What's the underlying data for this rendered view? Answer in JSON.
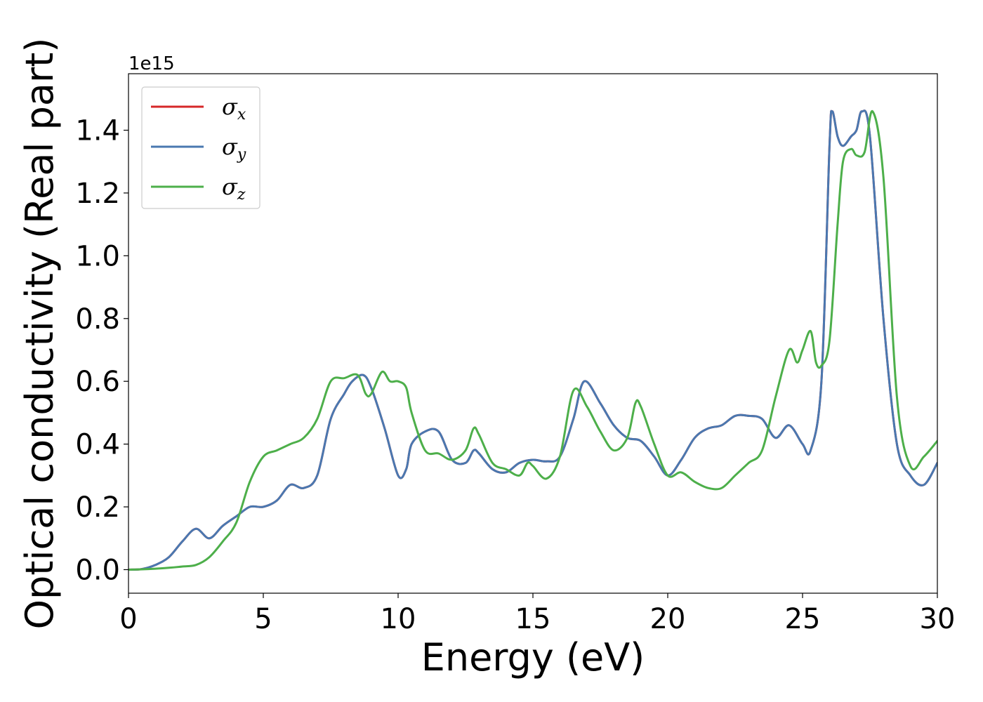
{
  "chart_data": {
    "type": "line",
    "xlabel": "Energy (eV)",
    "ylabel": "Optical conductivity (Real part)",
    "y_offset_text": "1e15",
    "xlim": [
      0,
      30
    ],
    "ylim": [
      -0.075,
      1.58
    ],
    "x_ticks": [
      0,
      5,
      10,
      15,
      20,
      25,
      30
    ],
    "x_tick_labels": [
      "0",
      "5",
      "10",
      "15",
      "20",
      "25",
      "30"
    ],
    "y_ticks": [
      0.0,
      0.2,
      0.4,
      0.6,
      0.8,
      1.0,
      1.2,
      1.4
    ],
    "y_tick_labels": [
      "0.0",
      "0.2",
      "0.4",
      "0.6",
      "0.8",
      "1.0",
      "1.2",
      "1.4"
    ],
    "grid": false,
    "legend_position": "top-left",
    "series": [
      {
        "name": "σx",
        "symbol": "σ",
        "subscript": "x",
        "color": "#d62728",
        "x": [
          0,
          0.5,
          1.0,
          1.5,
          2.0,
          2.5,
          3.0,
          3.5,
          4.0,
          4.5,
          5.0,
          5.5,
          6.0,
          6.5,
          7.0,
          7.5,
          8.0,
          8.3,
          8.7,
          9.0,
          9.5,
          10.0,
          10.3,
          10.5,
          11.0,
          11.5,
          12.0,
          12.5,
          12.8,
          13.0,
          13.5,
          14.0,
          14.5,
          15.0,
          15.5,
          16.0,
          16.5,
          16.9,
          17.5,
          18.0,
          18.5,
          19.0,
          19.5,
          20.0,
          20.5,
          21.0,
          21.5,
          22.0,
          22.5,
          23.0,
          23.5,
          24.0,
          24.5,
          25.0,
          25.3,
          25.7,
          26.0,
          26.1,
          26.3,
          26.5,
          26.8,
          27.0,
          27.2,
          27.5,
          28.0,
          28.5,
          29.0,
          29.5,
          30.0
        ],
        "y": [
          0.0,
          0.002,
          0.015,
          0.04,
          0.09,
          0.13,
          0.1,
          0.14,
          0.17,
          0.2,
          0.2,
          0.22,
          0.27,
          0.26,
          0.3,
          0.48,
          0.56,
          0.6,
          0.62,
          0.58,
          0.45,
          0.3,
          0.32,
          0.4,
          0.44,
          0.44,
          0.35,
          0.34,
          0.38,
          0.37,
          0.32,
          0.31,
          0.34,
          0.35,
          0.345,
          0.36,
          0.48,
          0.6,
          0.53,
          0.46,
          0.42,
          0.41,
          0.36,
          0.3,
          0.35,
          0.42,
          0.45,
          0.46,
          0.49,
          0.49,
          0.48,
          0.42,
          0.46,
          0.4,
          0.38,
          0.6,
          1.35,
          1.46,
          1.38,
          1.35,
          1.38,
          1.4,
          1.46,
          1.38,
          0.8,
          0.4,
          0.3,
          0.27,
          0.34
        ]
      },
      {
        "name": "σy",
        "symbol": "σ",
        "subscript": "y",
        "color": "#4a78b0",
        "x": [
          0,
          0.5,
          1.0,
          1.5,
          2.0,
          2.5,
          3.0,
          3.5,
          4.0,
          4.5,
          5.0,
          5.5,
          6.0,
          6.5,
          7.0,
          7.5,
          8.0,
          8.3,
          8.7,
          9.0,
          9.5,
          10.0,
          10.3,
          10.5,
          11.0,
          11.5,
          12.0,
          12.5,
          12.8,
          13.0,
          13.5,
          14.0,
          14.5,
          15.0,
          15.5,
          16.0,
          16.5,
          16.9,
          17.5,
          18.0,
          18.5,
          19.0,
          19.5,
          20.0,
          20.5,
          21.0,
          21.5,
          22.0,
          22.5,
          23.0,
          23.5,
          24.0,
          24.5,
          25.0,
          25.3,
          25.7,
          26.0,
          26.1,
          26.3,
          26.5,
          26.8,
          27.0,
          27.2,
          27.5,
          28.0,
          28.5,
          29.0,
          29.5,
          30.0
        ],
        "y": [
          0.0,
          0.002,
          0.015,
          0.04,
          0.09,
          0.13,
          0.1,
          0.14,
          0.17,
          0.2,
          0.2,
          0.22,
          0.27,
          0.26,
          0.3,
          0.48,
          0.56,
          0.6,
          0.62,
          0.58,
          0.45,
          0.3,
          0.32,
          0.4,
          0.44,
          0.44,
          0.35,
          0.34,
          0.38,
          0.37,
          0.32,
          0.31,
          0.34,
          0.35,
          0.345,
          0.36,
          0.48,
          0.6,
          0.53,
          0.46,
          0.42,
          0.41,
          0.36,
          0.3,
          0.35,
          0.42,
          0.45,
          0.46,
          0.49,
          0.49,
          0.48,
          0.42,
          0.46,
          0.4,
          0.38,
          0.6,
          1.35,
          1.46,
          1.38,
          1.35,
          1.38,
          1.4,
          1.46,
          1.38,
          0.8,
          0.4,
          0.3,
          0.27,
          0.34
        ]
      },
      {
        "name": "σz",
        "symbol": "σ",
        "subscript": "z",
        "color": "#4daf4a",
        "x": [
          0,
          0.5,
          1.0,
          1.5,
          2.0,
          2.5,
          3.0,
          3.5,
          4.0,
          4.5,
          5.0,
          5.5,
          6.0,
          6.5,
          7.0,
          7.5,
          8.0,
          8.5,
          8.8,
          9.0,
          9.4,
          9.7,
          10.0,
          10.3,
          10.5,
          11.0,
          11.5,
          12.0,
          12.5,
          12.8,
          13.0,
          13.5,
          14.0,
          14.5,
          14.8,
          15.0,
          15.5,
          16.0,
          16.5,
          17.0,
          17.5,
          18.0,
          18.5,
          18.8,
          19.0,
          19.5,
          20.0,
          20.5,
          21.0,
          21.5,
          22.0,
          22.5,
          23.0,
          23.5,
          24.0,
          24.5,
          24.8,
          25.0,
          25.3,
          25.5,
          25.7,
          26.0,
          26.3,
          26.5,
          26.8,
          27.0,
          27.3,
          27.6,
          28.0,
          28.5,
          29.0,
          29.5,
          30.0
        ],
        "y": [
          0.0,
          0.001,
          0.003,
          0.006,
          0.01,
          0.015,
          0.04,
          0.09,
          0.15,
          0.28,
          0.36,
          0.38,
          0.4,
          0.42,
          0.48,
          0.6,
          0.61,
          0.62,
          0.56,
          0.56,
          0.63,
          0.6,
          0.6,
          0.58,
          0.5,
          0.38,
          0.37,
          0.35,
          0.38,
          0.45,
          0.43,
          0.34,
          0.32,
          0.3,
          0.34,
          0.33,
          0.29,
          0.36,
          0.57,
          0.52,
          0.44,
          0.38,
          0.42,
          0.53,
          0.52,
          0.4,
          0.3,
          0.31,
          0.28,
          0.26,
          0.26,
          0.3,
          0.34,
          0.38,
          0.55,
          0.7,
          0.66,
          0.7,
          0.76,
          0.66,
          0.65,
          0.73,
          1.1,
          1.3,
          1.34,
          1.32,
          1.33,
          1.46,
          1.25,
          0.55,
          0.33,
          0.36,
          0.41
        ]
      }
    ]
  }
}
